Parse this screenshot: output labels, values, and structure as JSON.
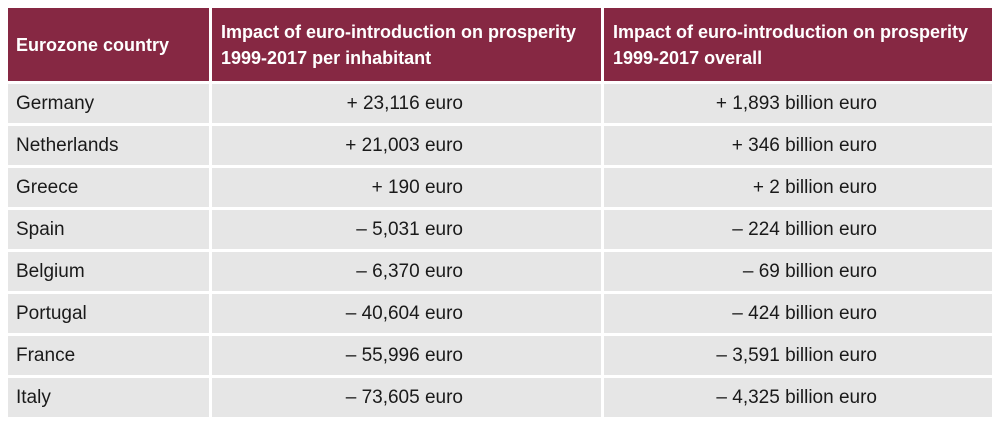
{
  "table": {
    "headers": [
      "Eurozone country",
      "Impact of euro-introduction on prosperity 1999-2017 per inhabitant",
      "Impact of euro-introduction on prosperity 1999-2017 overall"
    ],
    "rows": [
      {
        "country": "Germany",
        "per_inhabitant": "+ 23,116 euro",
        "overall": "+ 1,893 billion euro"
      },
      {
        "country": "Netherlands",
        "per_inhabitant": "+ 21,003 euro",
        "overall": "+ 346 billion euro"
      },
      {
        "country": "Greece",
        "per_inhabitant": "+ 190 euro",
        "overall": "+ 2 billion euro"
      },
      {
        "country": "Spain",
        "per_inhabitant": "– 5,031 euro",
        "overall": "– 224 billion euro"
      },
      {
        "country": "Belgium",
        "per_inhabitant": "– 6,370 euro",
        "overall": "– 69 billion euro"
      },
      {
        "country": "Portugal",
        "per_inhabitant": "– 40,604 euro",
        "overall": "– 424 billion euro"
      },
      {
        "country": "France",
        "per_inhabitant": "– 55,996 euro",
        "overall": "– 3,591 billion euro"
      },
      {
        "country": "Italy",
        "per_inhabitant": "– 73,605 euro",
        "overall": "– 4,325 billion euro"
      }
    ]
  },
  "colors": {
    "header_bg": "#862843",
    "header_text": "#ffffff",
    "row_bg": "#e6e6e6"
  }
}
